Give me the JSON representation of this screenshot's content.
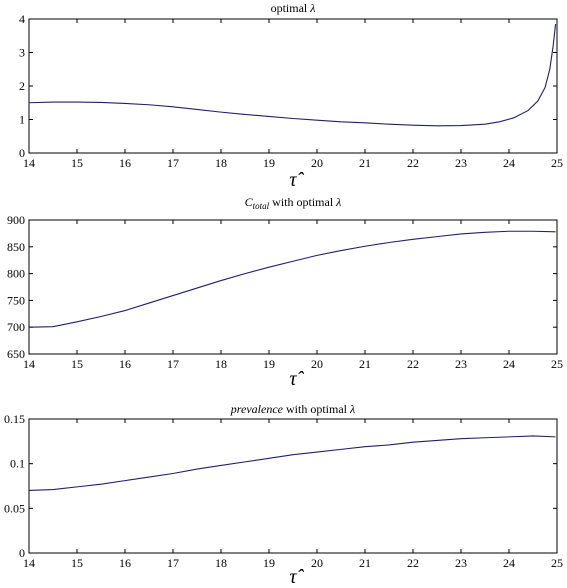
{
  "chart_data": [
    {
      "type": "line",
      "title": "optimal λ",
      "title_parts": {
        "lead": "",
        "sub": "",
        "rest": "optimal ",
        "lambda": "λ"
      },
      "xlabel": "τ̂",
      "xlim": [
        14,
        25
      ],
      "ylim": [
        0,
        4
      ],
      "xticks": [
        14,
        15,
        16,
        17,
        18,
        19,
        20,
        21,
        22,
        23,
        24,
        25
      ],
      "yticks": [
        0,
        1,
        2,
        3,
        4
      ],
      "ytick_labels": [
        "0",
        "1",
        "2",
        "3",
        "4"
      ],
      "series": [
        {
          "color": "#20206a",
          "x": [
            14,
            14.5,
            15,
            15.5,
            16,
            16.5,
            17,
            17.5,
            18,
            18.5,
            19,
            19.5,
            20,
            20.5,
            21,
            21.5,
            22,
            22.5,
            23,
            23.5,
            23.8,
            24.1,
            24.4,
            24.6,
            24.75,
            24.85,
            24.92,
            24.97
          ],
          "y": [
            1.5,
            1.52,
            1.52,
            1.51,
            1.48,
            1.44,
            1.38,
            1.3,
            1.22,
            1.15,
            1.09,
            1.03,
            0.98,
            0.93,
            0.9,
            0.86,
            0.83,
            0.81,
            0.82,
            0.86,
            0.93,
            1.05,
            1.27,
            1.55,
            1.95,
            2.5,
            3.2,
            3.85
          ]
        }
      ]
    },
    {
      "type": "line",
      "title": "C_total with optimal λ",
      "title_parts": {
        "lead": "C",
        "sub": "total",
        "rest": " with optimal ",
        "lambda": "λ"
      },
      "xlabel": "τ̂",
      "xlim": [
        14,
        25
      ],
      "ylim": [
        650,
        900
      ],
      "xticks": [
        14,
        15,
        16,
        17,
        18,
        19,
        20,
        21,
        22,
        23,
        24,
        25
      ],
      "yticks": [
        650,
        700,
        750,
        800,
        850,
        900
      ],
      "ytick_labels": [
        "650",
        "700",
        "750",
        "800",
        "850",
        "900"
      ],
      "series": [
        {
          "color": "#20206a",
          "x": [
            14,
            14.5,
            15,
            15.5,
            16,
            16.5,
            17,
            17.5,
            18,
            18.5,
            19,
            19.5,
            20,
            20.5,
            21,
            21.5,
            22,
            22.5,
            23,
            23.5,
            24,
            24.5,
            24.97
          ],
          "y": [
            700,
            701,
            710,
            720,
            731,
            745,
            759,
            773,
            787,
            800,
            812,
            823,
            834,
            843,
            851,
            858,
            864,
            869,
            874,
            877,
            879,
            879,
            878
          ]
        }
      ]
    },
    {
      "type": "line",
      "title": "prevalence with optimal λ",
      "title_parts": {
        "lead": "prevalence",
        "sub": "",
        "rest": " with optimal ",
        "lambda": "λ"
      },
      "xlabel": "τ̂",
      "xlim": [
        14,
        25
      ],
      "ylim": [
        0,
        0.15
      ],
      "xticks": [
        14,
        15,
        16,
        17,
        18,
        19,
        20,
        21,
        22,
        23,
        24,
        25
      ],
      "yticks": [
        0,
        0.05,
        0.1,
        0.15
      ],
      "ytick_labels": [
        "0",
        "0.05",
        "0.1",
        "0.15"
      ],
      "series": [
        {
          "color": "#20206a",
          "x": [
            14,
            14.5,
            15,
            15.5,
            16,
            16.5,
            17,
            17.5,
            18,
            18.5,
            19,
            19.5,
            20,
            20.5,
            21,
            21.5,
            22,
            22.5,
            23,
            23.5,
            24,
            24.5,
            24.97
          ],
          "y": [
            0.07,
            0.071,
            0.074,
            0.077,
            0.081,
            0.085,
            0.089,
            0.094,
            0.098,
            0.102,
            0.106,
            0.11,
            0.113,
            0.116,
            0.119,
            0.121,
            0.124,
            0.126,
            0.128,
            0.129,
            0.13,
            0.131,
            0.13
          ]
        }
      ]
    }
  ]
}
